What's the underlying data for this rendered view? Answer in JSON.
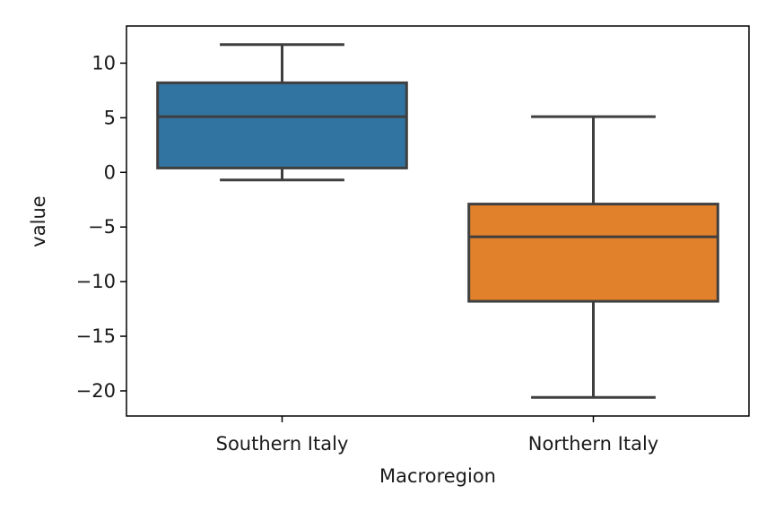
{
  "chart_data": {
    "type": "box",
    "xlabel": "Macroregion",
    "ylabel": "value",
    "ylim": [
      -22.3,
      13.4
    ],
    "yticks": [
      10,
      5,
      0,
      -5,
      -10,
      -15,
      -20
    ],
    "ytick_labels": [
      "10",
      "5",
      "0",
      "−5",
      "−10",
      "−15",
      "−20"
    ],
    "categories": [
      "Southern Italy",
      "Northern Italy"
    ],
    "boxes": [
      {
        "category": "Southern Italy",
        "whisker_low": -0.7,
        "q1": 0.4,
        "median": 5.1,
        "q3": 8.2,
        "whisker_high": 11.7,
        "color": "#3274a1"
      },
      {
        "category": "Northern Italy",
        "whisker_low": -20.6,
        "q1": -11.8,
        "median": -5.9,
        "q3": -2.9,
        "whisker_high": 5.1,
        "color": "#e1812c"
      }
    ],
    "line_color": "#3f3f3f",
    "grid": false,
    "legend": "none"
  }
}
